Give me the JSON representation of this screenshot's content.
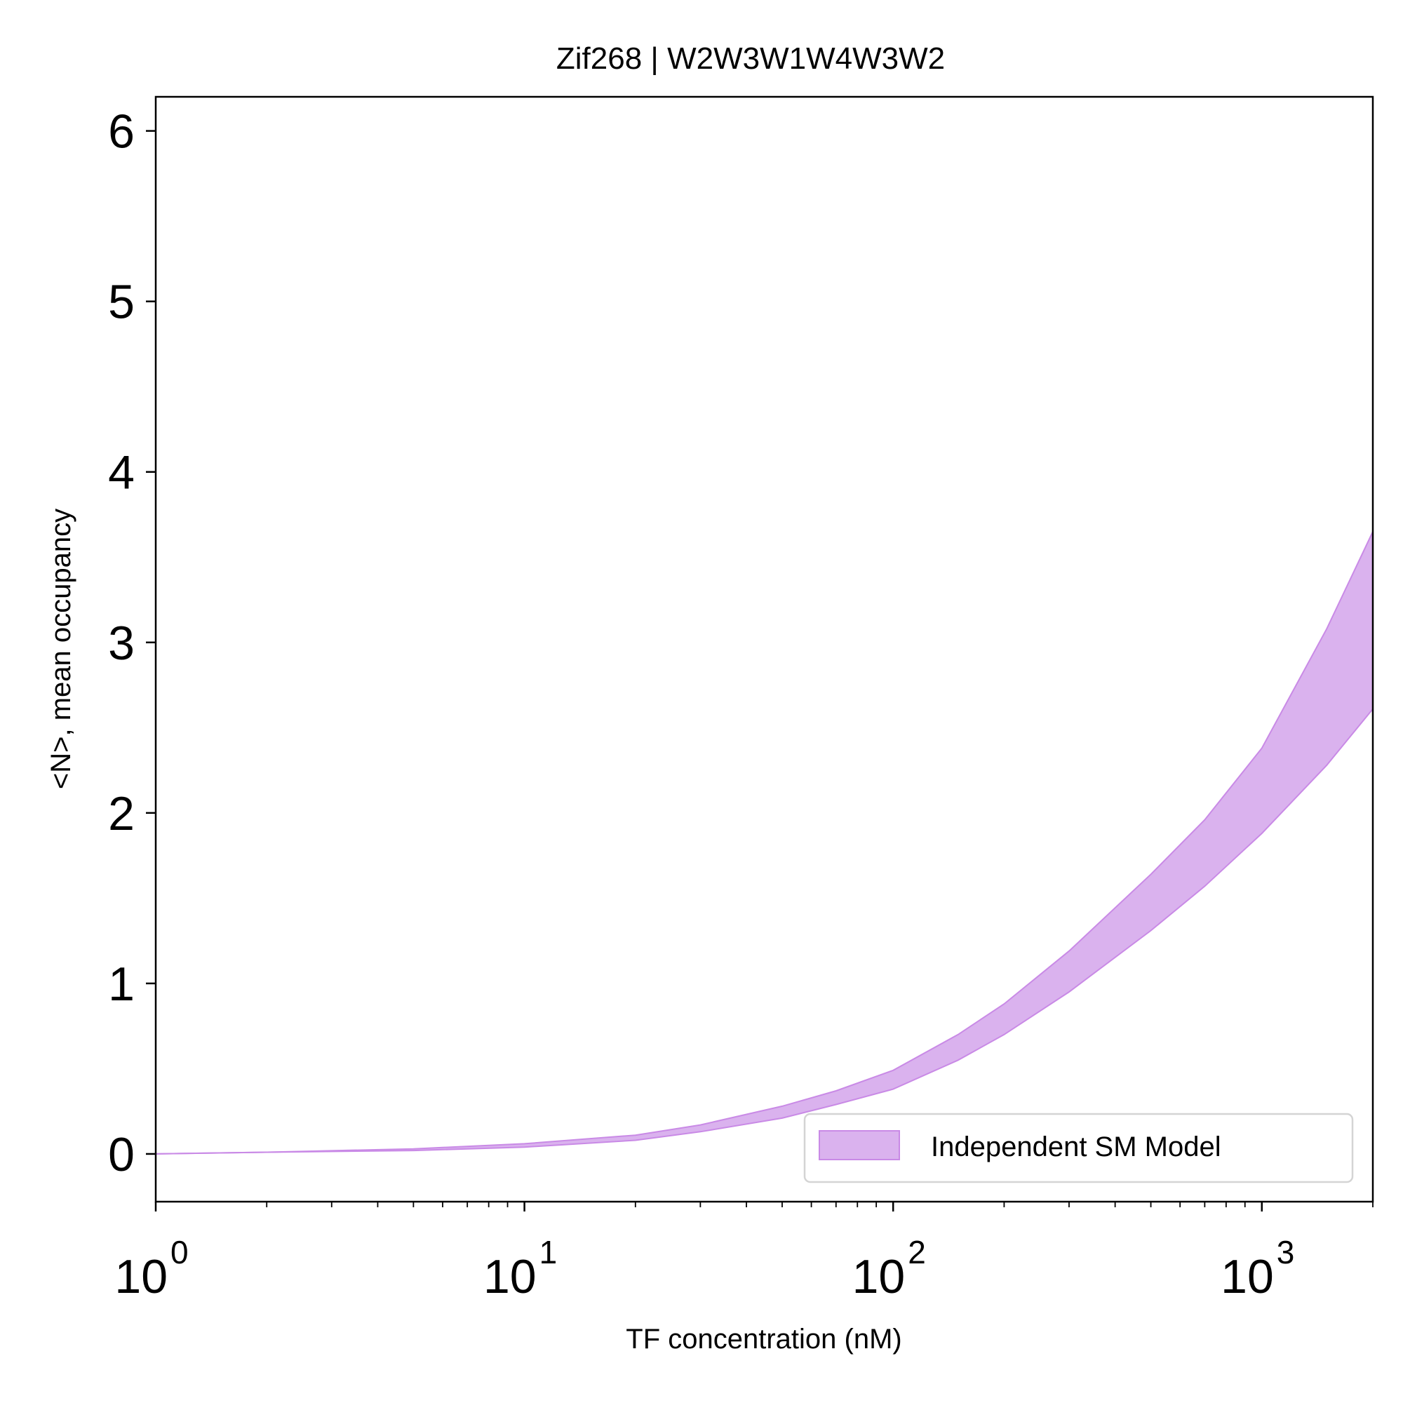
{
  "chart_data": {
    "type": "area",
    "title": "Zif268 | W2W3W1W4W3W2",
    "xlabel": "TF concentration (nM)",
    "ylabel": "<N>, mean occupancy",
    "xscale": "log",
    "xlim": [
      1,
      2000
    ],
    "ylim": [
      -0.28,
      6.2
    ],
    "xticks": [
      {
        "base": "10",
        "exp": "0",
        "value": 1
      },
      {
        "base": "10",
        "exp": "1",
        "value": 10
      },
      {
        "base": "10",
        "exp": "2",
        "value": 100
      },
      {
        "base": "10",
        "exp": "3",
        "value": 1000
      }
    ],
    "yticks": [
      "0",
      "1",
      "2",
      "3",
      "4",
      "5",
      "6"
    ],
    "grid": false,
    "legend": {
      "placement": "lower-right",
      "entries": [
        "Independent SM Model"
      ]
    },
    "series": [
      {
        "name": "Independent SM Model",
        "color": "#dab2ee",
        "edge_color": "#c98ae6",
        "x": [
          1,
          2,
          5,
          10,
          20,
          30,
          50,
          70,
          100,
          150,
          200,
          300,
          500,
          700,
          1000,
          1500,
          2000
        ],
        "lower": [
          0.0,
          0.01,
          0.02,
          0.04,
          0.08,
          0.13,
          0.21,
          0.29,
          0.38,
          0.55,
          0.7,
          0.95,
          1.31,
          1.57,
          1.88,
          2.28,
          2.61
        ],
        "upper": [
          0.0,
          0.01,
          0.03,
          0.06,
          0.11,
          0.17,
          0.28,
          0.37,
          0.49,
          0.7,
          0.88,
          1.19,
          1.64,
          1.96,
          2.38,
          3.08,
          3.65
        ]
      }
    ]
  }
}
